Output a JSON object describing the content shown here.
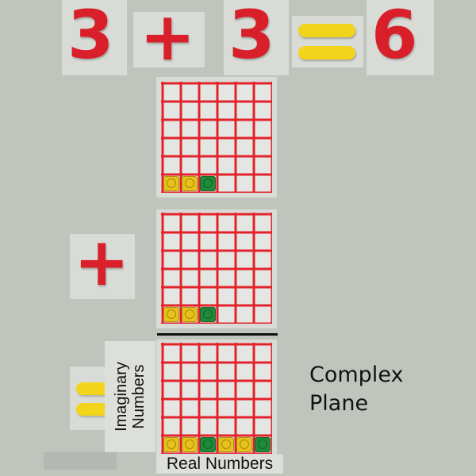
{
  "equation": {
    "left": "3",
    "plus": "+",
    "right": "3",
    "result": "6"
  },
  "operators": {
    "plus": "+"
  },
  "labels": {
    "imaginary_line1": "Imaginary",
    "imaginary_line2": "Numbers",
    "real": "Real Numbers",
    "complex_line1": "Complex",
    "complex_line2": "Plane"
  },
  "grids": [
    {
      "blocks": [
        "yellow",
        "yellow",
        "green"
      ]
    },
    {
      "blocks": [
        "yellow",
        "yellow",
        "green"
      ]
    },
    {
      "blocks": [
        "yellow",
        "yellow",
        "green",
        "yellow",
        "yellow",
        "green"
      ]
    }
  ],
  "colors": {
    "magnet_red": "#d9202a",
    "magnet_yellow": "#f2d51b",
    "grid_red": "#e3232b",
    "block_yellow": "#e8c21a",
    "block_green": "#1f8a3a",
    "background": "#bfc5bd"
  }
}
